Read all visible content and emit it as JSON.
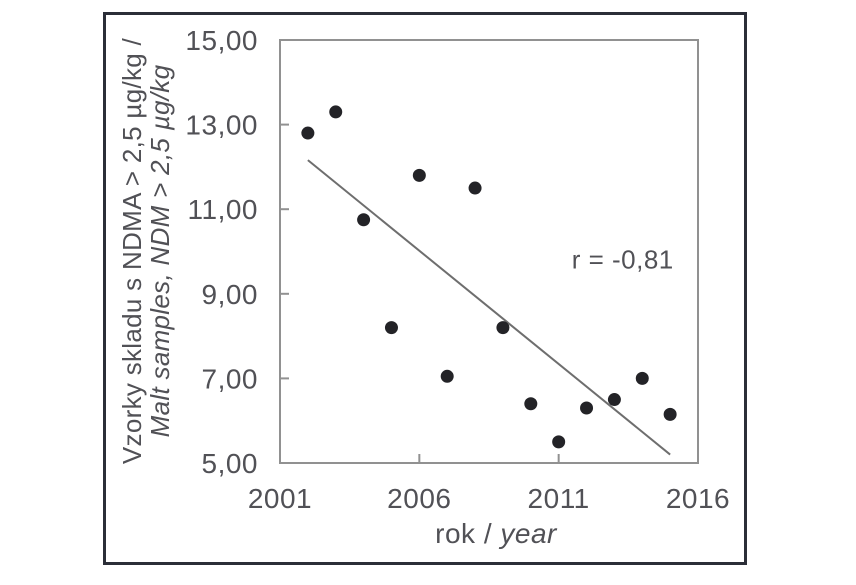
{
  "figure": {
    "border_color": "#2b2e38",
    "background": "#ffffff"
  },
  "chart_data": {
    "type": "scatter",
    "xlabel": "rok / year",
    "xlabel_parts": [
      {
        "text": "rok / ",
        "italic": false
      },
      {
        "text": "year",
        "italic": true
      }
    ],
    "ylabel": "Vzorky skladu s NDMA > 2,5 µg/kg / Malt samples, NDM > 2,5 µg/kg",
    "ylabel_lines": [
      {
        "text": "Vzorky skladu s NDMA > 2,5 µg/kg /",
        "italic": false
      },
      {
        "text": "Malt samples, NDM > 2,5 µg/kg",
        "italic": true
      }
    ],
    "xlim": [
      2001,
      2016
    ],
    "ylim": [
      5,
      15
    ],
    "x_ticks": [
      {
        "value": 2001,
        "label": "2001"
      },
      {
        "value": 2006,
        "label": "2006"
      },
      {
        "value": 2011,
        "label": "2011"
      },
      {
        "value": 2016,
        "label": "2016"
      }
    ],
    "y_ticks": [
      {
        "value": 15,
        "label": "15,00"
      },
      {
        "value": 13,
        "label": "13,00"
      },
      {
        "value": 11,
        "label": "11,00"
      },
      {
        "value": 9,
        "label": "9,00"
      },
      {
        "value": 7,
        "label": "7,00"
      },
      {
        "value": 5,
        "label": "5,00"
      }
    ],
    "grid": false,
    "legend": false,
    "points": [
      [
        2002,
        12.8
      ],
      [
        2003,
        13.3
      ],
      [
        2004,
        10.75
      ],
      [
        2005,
        8.2
      ],
      [
        2006,
        11.8
      ],
      [
        2007,
        7.05
      ],
      [
        2008,
        11.5
      ],
      [
        2009,
        8.2
      ],
      [
        2010,
        6.4
      ],
      [
        2011,
        5.5
      ],
      [
        2012,
        6.3
      ],
      [
        2013,
        6.5
      ],
      [
        2014,
        7.0
      ],
      [
        2015,
        6.15
      ]
    ],
    "trendline": {
      "x1": 2002,
      "y1": 12.16,
      "x2": 2015,
      "y2": 5.2
    },
    "annotation": {
      "text": "r = -0,81",
      "x": 2013.3,
      "y": 9.6
    },
    "colors": {
      "point": "#232327",
      "trend_line": "#6e6e6e",
      "axis": "#919191",
      "text": "#515156"
    }
  }
}
